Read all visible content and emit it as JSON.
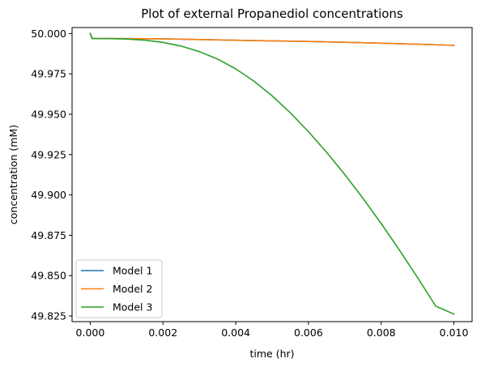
{
  "chart_data": {
    "type": "line",
    "title": "Plot of external Propanediol concentrations",
    "xlabel": "time (hr)",
    "ylabel": "concentration (mM)",
    "xlim": [
      -0.0005,
      0.0105
    ],
    "ylim": [
      49.8215,
      50.0037
    ],
    "xticks": [
      0.0,
      0.002,
      0.004,
      0.006,
      0.008,
      0.01
    ],
    "xtick_labels": [
      "0.000",
      "0.002",
      "0.004",
      "0.006",
      "0.008",
      "0.010"
    ],
    "yticks": [
      49.825,
      49.85,
      49.875,
      49.9,
      49.925,
      49.95,
      49.975,
      50.0
    ],
    "ytick_labels": [
      "49.825",
      "49.850",
      "49.875",
      "49.900",
      "49.925",
      "49.950",
      "49.975",
      "50.000"
    ],
    "grid": false,
    "legend_position": "lower-left",
    "series": [
      {
        "name": "Model 1",
        "color": "#1f77b4",
        "x": [
          0.0,
          5e-05,
          0.001,
          0.002,
          0.003,
          0.004,
          0.005,
          0.006,
          0.007,
          0.008,
          0.009,
          0.01
        ],
        "y": [
          50.0,
          49.9969,
          49.99683,
          49.99672,
          49.99628,
          49.99585,
          49.99547,
          49.99508,
          49.99455,
          49.99399,
          49.99337,
          49.99267
        ]
      },
      {
        "name": "Model 2",
        "color": "#ff7f0e",
        "x": [
          0.0,
          5e-05,
          0.001,
          0.002,
          0.003,
          0.004,
          0.005,
          0.006,
          0.007,
          0.008,
          0.009,
          0.01
        ],
        "y": [
          50.0,
          49.9969,
          49.99683,
          49.99672,
          49.99628,
          49.99585,
          49.99547,
          49.99508,
          49.99455,
          49.99399,
          49.99337,
          49.99267
        ]
      },
      {
        "name": "Model 3",
        "color": "#2ca02c",
        "x": [
          0.0,
          5e-05,
          0.0005,
          0.001,
          0.0015,
          0.002,
          0.0025,
          0.003,
          0.0035,
          0.004,
          0.0045,
          0.005,
          0.0055,
          0.006,
          0.0065,
          0.007,
          0.0075,
          0.008,
          0.0085,
          0.009,
          0.0095,
          0.01
        ],
        "y": [
          50.0,
          49.9969,
          49.99685,
          49.9966,
          49.9959,
          49.9945,
          49.9922,
          49.9888,
          49.9842,
          49.9781,
          49.9705,
          49.9614,
          49.9509,
          49.9392,
          49.9264,
          49.9126,
          49.8979,
          49.8823,
          49.8659,
          49.8488,
          49.8311,
          49.8262
        ]
      }
    ]
  }
}
